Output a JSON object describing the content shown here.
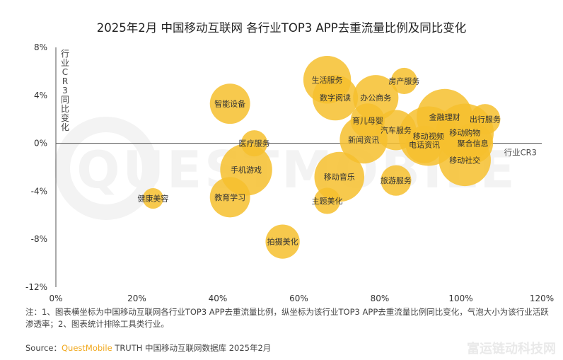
{
  "chart_data": {
    "type": "scatter",
    "title": "2025年2月 中国移动互联网 各行业TOP3 APP去重流量比例及同比变化",
    "xlabel": "行业CR3",
    "ylabel": "行业CR3同比变化",
    "xlim": [
      0,
      120
    ],
    "ylim": [
      -12,
      8
    ],
    "x_ticks": [
      "0%",
      "20%",
      "40%",
      "60%",
      "80%",
      "100%",
      "120%"
    ],
    "y_ticks": [
      "8%",
      "4%",
      "0%",
      "-4%",
      "-8%",
      "-12%"
    ],
    "bubble_color": "#f6bf2e",
    "points": [
      {
        "label": "生活服务",
        "x": 67,
        "y": 5.3,
        "size": 9
      },
      {
        "label": "数字阅读",
        "x": 69,
        "y": 3.8,
        "size": 8
      },
      {
        "label": "房产服务",
        "x": 86,
        "y": 5.2,
        "size": 2
      },
      {
        "label": "办公商务",
        "x": 79,
        "y": 3.8,
        "size": 8
      },
      {
        "label": "智能设备",
        "x": 43,
        "y": 3.3,
        "size": 6
      },
      {
        "label": "育儿母婴",
        "x": 77,
        "y": 1.9,
        "size": 4
      },
      {
        "label": "金融理财",
        "x": 96,
        "y": 2.2,
        "size": 13
      },
      {
        "label": "出行服务",
        "x": 106,
        "y": 2.0,
        "size": 3
      },
      {
        "label": "汽车服务",
        "x": 84,
        "y": 1.1,
        "size": 6
      },
      {
        "label": "移动购物",
        "x": 101,
        "y": 0.9,
        "size": 14
      },
      {
        "label": "新闻资讯",
        "x": 76,
        "y": 0.3,
        "size": 9
      },
      {
        "label": "移动视频",
        "x": 92,
        "y": 0.6,
        "size": 15
      },
      {
        "label": "聚合信息",
        "x": 103,
        "y": 0.0,
        "size": 6
      },
      {
        "label": "电话资讯",
        "x": 91,
        "y": -0.1,
        "size": 5
      },
      {
        "label": "医疗服务",
        "x": 49,
        "y": 0.0,
        "size": 2
      },
      {
        "label": "移动社交",
        "x": 101,
        "y": -1.4,
        "size": 11
      },
      {
        "label": "手机游戏",
        "x": 47,
        "y": -2.2,
        "size": 11
      },
      {
        "label": "移动音乐",
        "x": 70,
        "y": -2.8,
        "size": 10
      },
      {
        "label": "旅游服务",
        "x": 84,
        "y": -3.1,
        "size": 3
      },
      {
        "label": "教育学习",
        "x": 43,
        "y": -4.5,
        "size": 6
      },
      {
        "label": "健康美容",
        "x": 24,
        "y": -4.6,
        "size": 1
      },
      {
        "label": "主题美化",
        "x": 67,
        "y": -4.8,
        "size": 2
      },
      {
        "label": "拍摄美化",
        "x": 56,
        "y": -8.2,
        "size": 4
      }
    ]
  },
  "notes": "注：1、图表横坐标为中国移动互联网各行业TOP3 APP去重流量比例，纵坐标为该行业TOP3 APP去重流量比例同比变化，气泡大小为该行业活跃渗透率；2、图表统计排除工具类行业。",
  "source": {
    "prefix": "Source：",
    "brand": "QuestMobile",
    "suffix": " TRUTH 中国移动互联网数据库 2025年2月"
  },
  "watermark_text": "QUESTMOBILE",
  "site_watermark": "富运链动科技网"
}
